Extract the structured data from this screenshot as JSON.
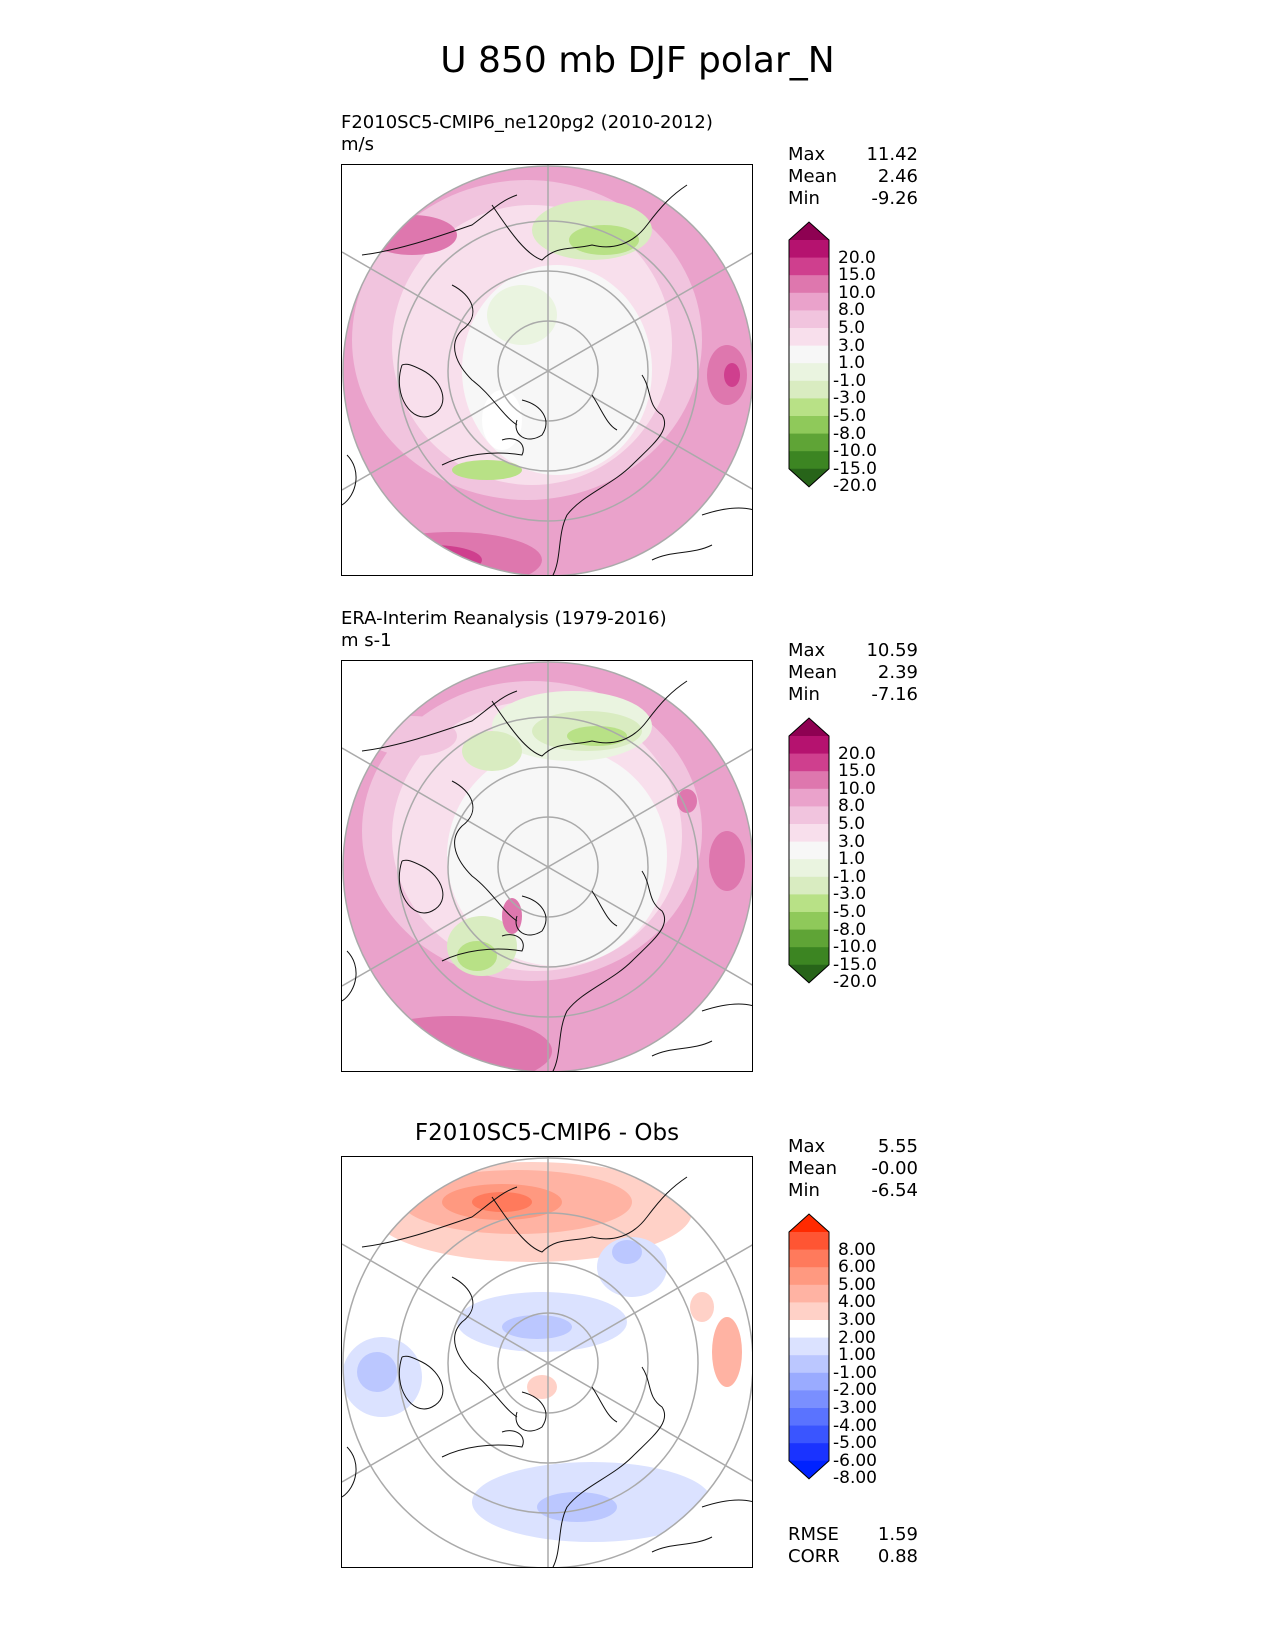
{
  "figure": {
    "title": "U 850 mb DJF polar_N"
  },
  "panels": [
    {
      "title": "F2010SC5-CMIP6_ne120pg2 (2010-2012)",
      "units": "m/s",
      "stats": {
        "max_label": "Max",
        "max": "11.42",
        "mean_label": "Mean",
        "mean": "2.46",
        "min_label": "Min",
        "min": "-9.26"
      },
      "colorbar": [
        "20.0",
        "15.0",
        "10.0",
        "8.0",
        "5.0",
        "3.0",
        "1.0",
        "-1.0",
        "-3.0",
        "-5.0",
        "-8.0",
        "-10.0",
        "-15.0",
        "-20.0"
      ]
    },
    {
      "title": "ERA-Interim Reanalysis (1979-2016)",
      "units": "m s-1",
      "stats": {
        "max_label": "Max",
        "max": "10.59",
        "mean_label": "Mean",
        "mean": "2.39",
        "min_label": "Min",
        "min": "-7.16"
      },
      "colorbar": [
        "20.0",
        "15.0",
        "10.0",
        "8.0",
        "5.0",
        "3.0",
        "1.0",
        "-1.0",
        "-3.0",
        "-5.0",
        "-8.0",
        "-10.0",
        "-15.0",
        "-20.0"
      ]
    },
    {
      "title": "F2010SC5-CMIP6 - Obs",
      "units": "",
      "stats": {
        "max_label": "Max",
        "max": "5.55",
        "mean_label": "Mean",
        "mean": "-0.00",
        "min_label": "Min",
        "min": "-6.54"
      },
      "colorbar": [
        "8.00",
        "6.00",
        "5.00",
        "4.00",
        "3.00",
        "2.00",
        "1.00",
        "-1.00",
        "-2.00",
        "-3.00",
        "-4.00",
        "-5.00",
        "-6.00",
        "-8.00"
      ],
      "metrics": {
        "rmse_label": "RMSE",
        "rmse": "1.59",
        "corr_label": "CORR",
        "corr": "0.88"
      }
    }
  ],
  "colors": {
    "pink_green": [
      "#8e0152",
      "#b5126f",
      "#cf3f8e",
      "#de77ae",
      "#eaa2cb",
      "#f1c4de",
      "#f8dfec",
      "#f7f7f7",
      "#eaf4e0",
      "#d9ecc1",
      "#b8e186",
      "#8fc95a",
      "#5fa436",
      "#3c8522",
      "#276419"
    ],
    "blue_red": [
      "#ff2a00",
      "#ff5533",
      "#ff7a5c",
      "#ff9980",
      "#ffb3a3",
      "#ffd1c7",
      "#ffffff",
      "#dbe2ff",
      "#bbc7ff",
      "#9aabff",
      "#7a8fff",
      "#5a73ff",
      "#3a55ff",
      "#1a33ff",
      "#0022ff"
    ]
  },
  "chart_data": [
    {
      "type": "heatmap",
      "title": "F2010SC5-CMIP6_ne120pg2 (2010-2012)",
      "projection": "north polar stereographic",
      "units": "m/s",
      "levels": [
        -20,
        -15,
        -10,
        -8,
        -5,
        -3,
        -1,
        1,
        3,
        5,
        8,
        10,
        15,
        20
      ],
      "max": 11.42,
      "mean": 2.46,
      "min": -9.26
    },
    {
      "type": "heatmap",
      "title": "ERA-Interim Reanalysis (1979-2016)",
      "projection": "north polar stereographic",
      "units": "m s-1",
      "levels": [
        -20,
        -15,
        -10,
        -8,
        -5,
        -3,
        -1,
        1,
        3,
        5,
        8,
        10,
        15,
        20
      ],
      "max": 10.59,
      "mean": 2.39,
      "min": -7.16
    },
    {
      "type": "heatmap",
      "title": "F2010SC5-CMIP6 - Obs",
      "projection": "north polar stereographic",
      "levels": [
        -8,
        -6,
        -5,
        -4,
        -3,
        -2,
        -1,
        1,
        2,
        3,
        4,
        5,
        6,
        8
      ],
      "max": 5.55,
      "mean": -0.0,
      "min": -6.54,
      "rmse": 1.59,
      "corr": 0.88
    }
  ]
}
